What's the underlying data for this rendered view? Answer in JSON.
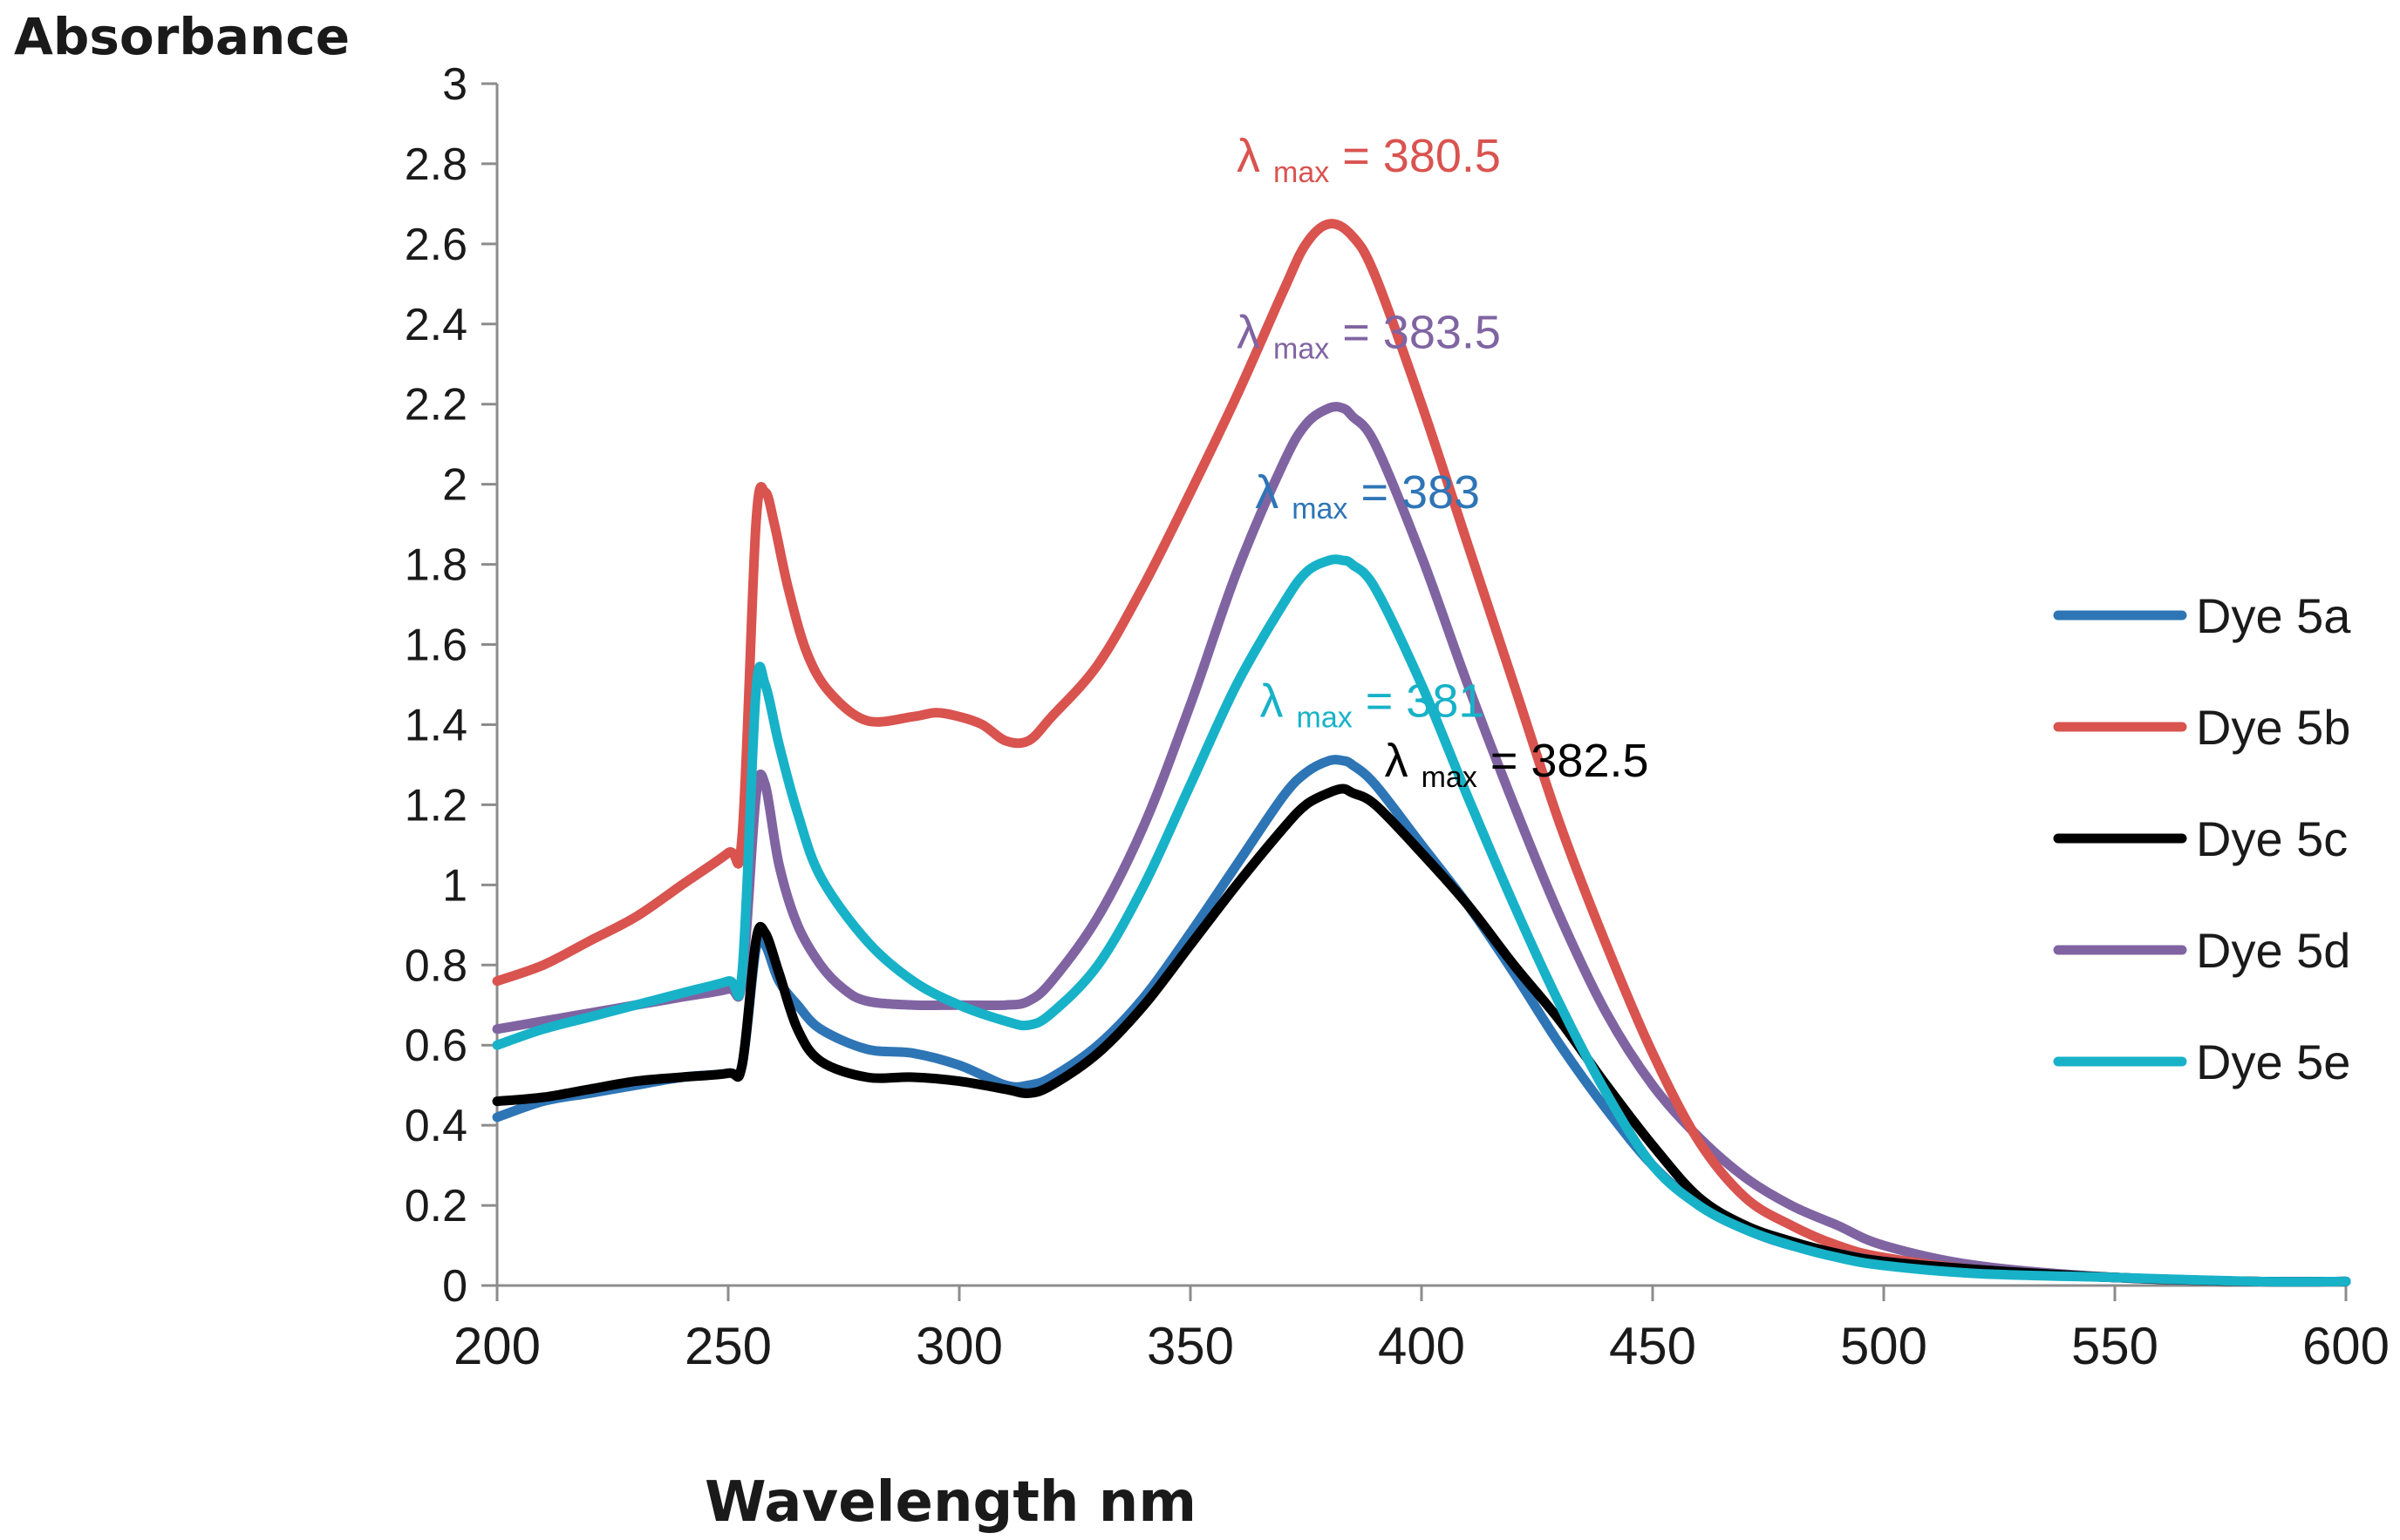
{
  "chart_data": {
    "type": "line",
    "title": "",
    "xlabel": "Wavelength nm",
    "ylabel": "Absorbance",
    "xlim": [
      200,
      600
    ],
    "ylim": [
      0,
      3
    ],
    "xticks": [
      "200",
      "250",
      "300",
      "350",
      "400",
      "450",
      "500",
      "550",
      "600"
    ],
    "yticks": [
      "0",
      "0.2",
      "0.4",
      "0.6",
      "0.8",
      "1",
      "1.2",
      "1.4",
      "1.6",
      "1.8",
      "2",
      "2.2",
      "2.4",
      "2.6",
      "2.8",
      "3"
    ],
    "grid": false,
    "legend_position": "right",
    "series": [
      {
        "name": "Dye 5a",
        "color": "#2e75b6",
        "x": [
          200,
          210,
          220,
          230,
          240,
          250,
          253,
          256,
          258,
          261,
          265,
          270,
          280,
          290,
          300,
          310,
          315,
          320,
          330,
          340,
          350,
          360,
          370,
          375,
          380,
          383,
          385,
          390,
          400,
          410,
          420,
          430,
          440,
          450,
          460,
          470,
          480,
          490,
          500,
          520,
          550,
          580,
          600
        ],
        "y": [
          0.42,
          0.46,
          0.48,
          0.5,
          0.52,
          0.53,
          0.55,
          0.84,
          0.85,
          0.76,
          0.7,
          0.64,
          0.59,
          0.58,
          0.55,
          0.5,
          0.5,
          0.52,
          0.6,
          0.72,
          0.88,
          1.05,
          1.22,
          1.28,
          1.31,
          1.31,
          1.3,
          1.25,
          1.1,
          0.95,
          0.78,
          0.6,
          0.44,
          0.3,
          0.2,
          0.14,
          0.1,
          0.08,
          0.06,
          0.04,
          0.02,
          0.01,
          0.01
        ]
      },
      {
        "name": "Dye 5b",
        "color": "#d9534f",
        "x": [
          200,
          210,
          220,
          230,
          240,
          250,
          253,
          256,
          258,
          260,
          263,
          267,
          272,
          280,
          290,
          295,
          300,
          305,
          310,
          315,
          320,
          330,
          340,
          350,
          360,
          370,
          375,
          380,
          385,
          390,
          400,
          410,
          420,
          430,
          440,
          450,
          460,
          470,
          480,
          490,
          500,
          520,
          550,
          580,
          600
        ],
        "y": [
          0.76,
          0.8,
          0.86,
          0.92,
          1.0,
          1.08,
          1.12,
          1.9,
          1.98,
          1.9,
          1.74,
          1.58,
          1.48,
          1.41,
          1.42,
          1.43,
          1.42,
          1.4,
          1.36,
          1.36,
          1.42,
          1.55,
          1.75,
          1.98,
          2.22,
          2.48,
          2.6,
          2.65,
          2.62,
          2.52,
          2.2,
          1.85,
          1.5,
          1.15,
          0.85,
          0.58,
          0.36,
          0.22,
          0.15,
          0.1,
          0.07,
          0.04,
          0.02,
          0.01,
          0.01
        ]
      },
      {
        "name": "Dye 5c",
        "color": "#000000",
        "x": [
          200,
          210,
          220,
          230,
          240,
          250,
          253,
          256,
          258,
          261,
          265,
          270,
          280,
          290,
          300,
          310,
          315,
          320,
          330,
          340,
          350,
          360,
          370,
          375,
          380,
          383,
          385,
          390,
          400,
          410,
          420,
          430,
          440,
          450,
          460,
          470,
          480,
          490,
          500,
          520,
          550,
          580,
          600
        ],
        "y": [
          0.46,
          0.47,
          0.49,
          0.51,
          0.52,
          0.53,
          0.55,
          0.86,
          0.88,
          0.78,
          0.64,
          0.56,
          0.52,
          0.52,
          0.51,
          0.49,
          0.48,
          0.5,
          0.58,
          0.7,
          0.85,
          1.0,
          1.14,
          1.2,
          1.23,
          1.24,
          1.23,
          1.2,
          1.08,
          0.95,
          0.8,
          0.66,
          0.5,
          0.35,
          0.22,
          0.15,
          0.11,
          0.08,
          0.06,
          0.04,
          0.02,
          0.01,
          0.01
        ]
      },
      {
        "name": "Dye 5d",
        "color": "#8064a2",
        "x": [
          200,
          210,
          220,
          230,
          240,
          250,
          253,
          256,
          258,
          261,
          265,
          270,
          275,
          280,
          290,
          300,
          310,
          315,
          320,
          330,
          340,
          350,
          360,
          370,
          375,
          380,
          383,
          385,
          390,
          400,
          410,
          420,
          430,
          440,
          450,
          460,
          470,
          480,
          490,
          500,
          520,
          550,
          580,
          600
        ],
        "y": [
          0.64,
          0.66,
          0.68,
          0.7,
          0.72,
          0.74,
          0.76,
          1.22,
          1.25,
          1.05,
          0.9,
          0.8,
          0.74,
          0.71,
          0.7,
          0.7,
          0.7,
          0.71,
          0.76,
          0.92,
          1.15,
          1.45,
          1.78,
          2.05,
          2.15,
          2.19,
          2.19,
          2.17,
          2.1,
          1.82,
          1.5,
          1.2,
          0.92,
          0.68,
          0.5,
          0.37,
          0.27,
          0.2,
          0.15,
          0.1,
          0.05,
          0.02,
          0.01,
          0.01
        ]
      },
      {
        "name": "Dye 5e",
        "color": "#17b2c8",
        "x": [
          200,
          210,
          220,
          230,
          240,
          250,
          253,
          256,
          258,
          261,
          265,
          270,
          280,
          290,
          300,
          310,
          315,
          320,
          330,
          340,
          350,
          360,
          370,
          375,
          380,
          383,
          385,
          390,
          400,
          410,
          420,
          430,
          440,
          450,
          460,
          470,
          480,
          490,
          500,
          520,
          550,
          580,
          600
        ],
        "y": [
          0.6,
          0.64,
          0.67,
          0.7,
          0.73,
          0.76,
          0.78,
          1.48,
          1.5,
          1.35,
          1.18,
          1.02,
          0.86,
          0.76,
          0.7,
          0.66,
          0.65,
          0.68,
          0.8,
          1.0,
          1.25,
          1.5,
          1.7,
          1.78,
          1.81,
          1.81,
          1.8,
          1.74,
          1.5,
          1.22,
          0.95,
          0.7,
          0.48,
          0.3,
          0.2,
          0.14,
          0.1,
          0.07,
          0.05,
          0.03,
          0.02,
          0.01,
          0.01
        ]
      }
    ],
    "annotations": [
      {
        "name": "Dye 5b",
        "symbol": "λ",
        "sub": "max",
        "rest": " = 380.5",
        "color": "#d9534f",
        "x": 360,
        "y": 2.78
      },
      {
        "name": "Dye 5d",
        "symbol": "λ",
        "sub": "max",
        "rest": " = 383.5",
        "color": "#8064a2",
        "x": 360,
        "y": 2.34
      },
      {
        "name": "Dye 5a",
        "symbol": "λ",
        "sub": "max",
        "rest": " = 383",
        "color": "#2e75b6",
        "x": 364,
        "y": 1.94
      },
      {
        "name": "Dye 5e",
        "symbol": "λ",
        "sub": "max",
        "rest": " = 381",
        "color": "#17b2c8",
        "x": 365,
        "y": 1.42
      },
      {
        "name": "Dye 5c",
        "symbol": "λ",
        "sub": "max",
        "rest": " = 382.5",
        "color": "#000000",
        "x": 392,
        "y": 1.27
      }
    ]
  }
}
